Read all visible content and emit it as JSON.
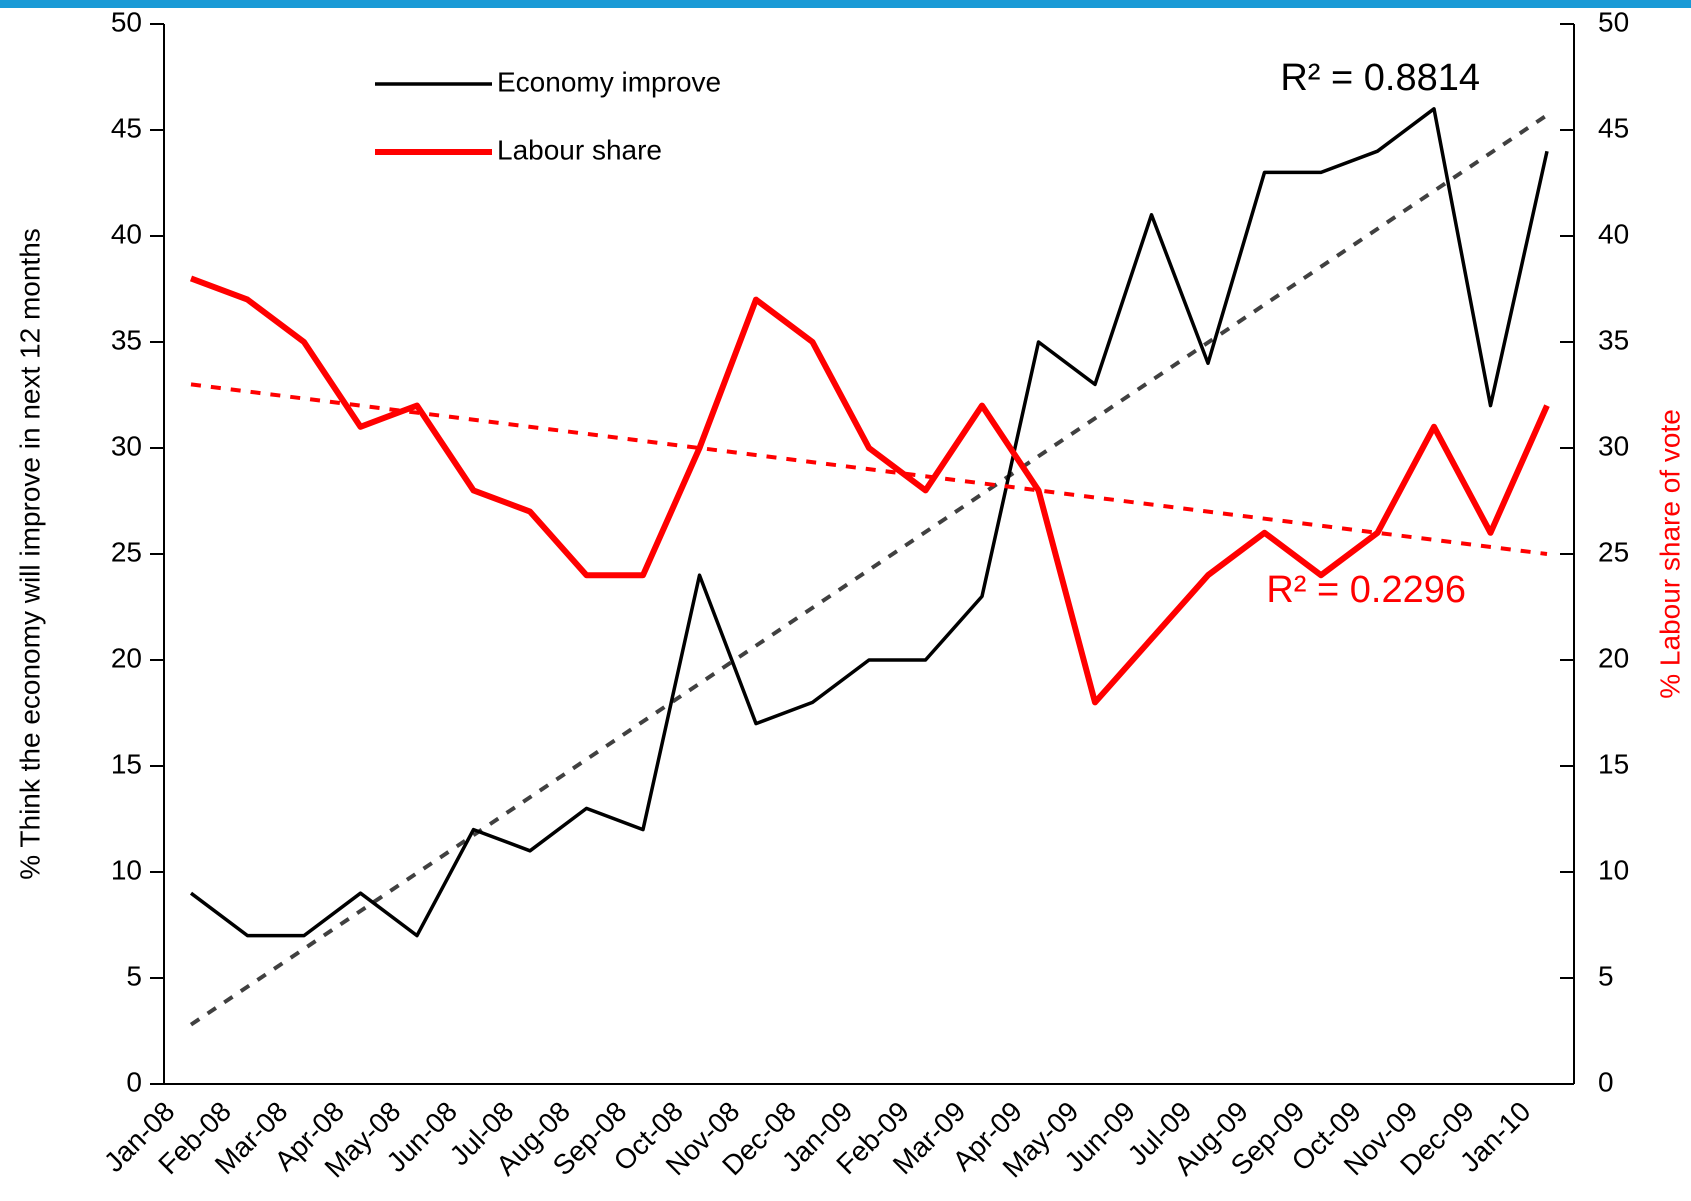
{
  "chart_data": {
    "type": "line",
    "categories": [
      "Jan-08",
      "Feb-08",
      "Mar-08",
      "Apr-08",
      "May-08",
      "Jun-08",
      "Jul-08",
      "Aug-08",
      "Sep-08",
      "Oct-08",
      "Nov-08",
      "Dec-08",
      "Jan-09",
      "Feb-09",
      "Mar-09",
      "Apr-09",
      "May-09",
      "Jun-09",
      "Jul-09",
      "Aug-09",
      "Sep-09",
      "Oct-09",
      "Nov-09",
      "Dec-09",
      "Jan-10"
    ],
    "series": [
      {
        "name": "Economy improve",
        "color": "#000000",
        "trend_color": "#404040",
        "axis": "y",
        "values": [
          9,
          7,
          7,
          9,
          7,
          12,
          11,
          13,
          12,
          24,
          17,
          18,
          20,
          20,
          23,
          35,
          33,
          41,
          34,
          43,
          43,
          44,
          46,
          32,
          44
        ],
        "trend": [
          2.8,
          45.7
        ],
        "trend_label": "R² = 0.8814"
      },
      {
        "name": "Labour share",
        "color": "#ff0000",
        "trend_color": "#ff0000",
        "axis": "y2",
        "values": [
          38,
          37,
          35,
          31,
          32,
          28,
          27,
          24,
          24,
          30,
          37,
          35,
          30,
          28,
          32,
          28,
          18,
          21,
          24,
          26,
          24,
          26,
          31,
          26,
          32
        ],
        "trend": [
          33,
          25
        ],
        "trend_label": "R² = 0.2296"
      }
    ],
    "ylabel": "% Think the economy will improve in next 12 months",
    "y2label": "% Labour share of vote",
    "ylim": [
      0,
      50
    ],
    "yticks": [
      0,
      5,
      10,
      15,
      20,
      25,
      30,
      35,
      40,
      45,
      50
    ],
    "y2lim": [
      0,
      50
    ],
    "y2ticks": [
      0,
      5,
      10,
      15,
      20,
      25,
      30,
      35,
      40,
      45,
      50
    ]
  }
}
